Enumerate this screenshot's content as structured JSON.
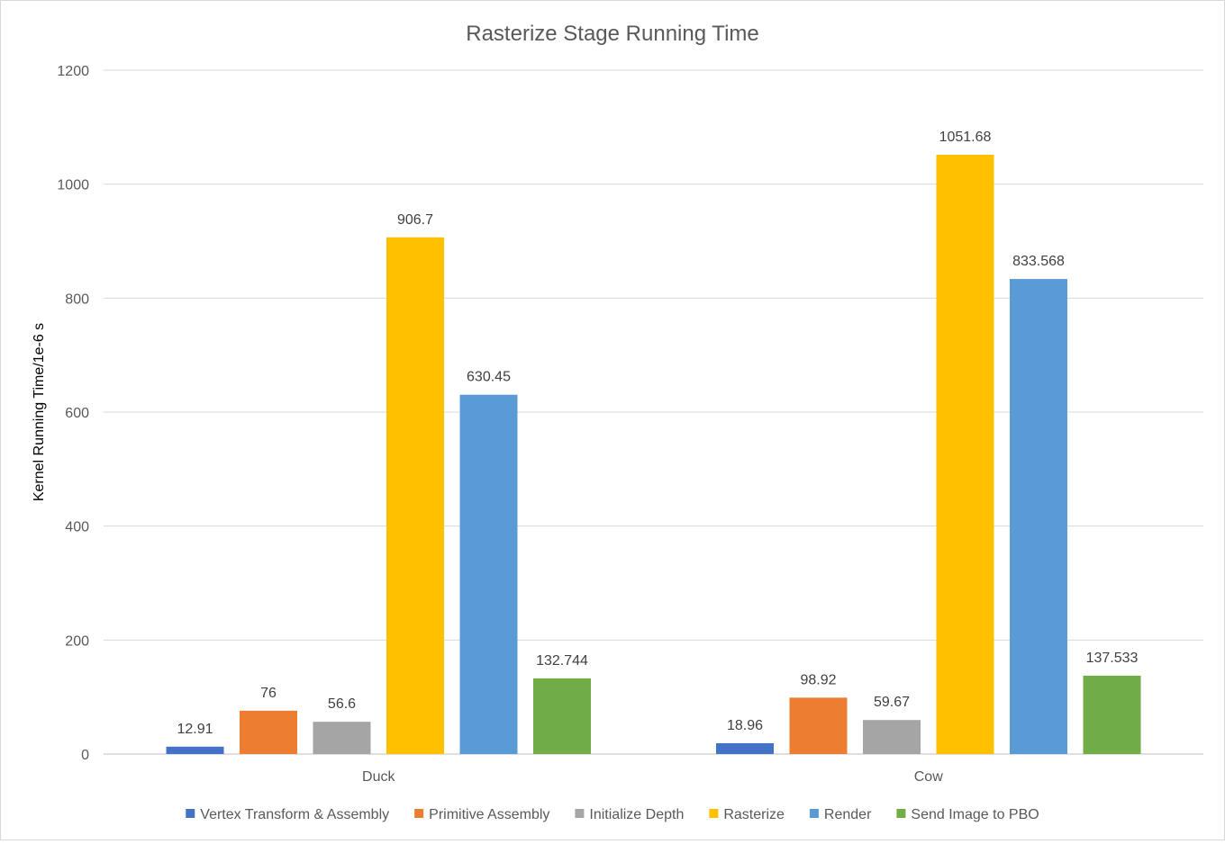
{
  "chart_data": {
    "type": "bar",
    "title": "Rasterize Stage Running Time",
    "xlabel": "",
    "ylabel": "Kernel Running Time/1e-6 s",
    "categories": [
      "Duck",
      "Cow"
    ],
    "ylim": [
      0,
      1200
    ],
    "yticks": [
      0,
      200,
      400,
      600,
      800,
      1000,
      1200
    ],
    "grid": true,
    "legend_position": "bottom",
    "series": [
      {
        "name": "Vertex Transform & Assembly",
        "color": "#4472C4",
        "values": [
          12.91,
          18.96
        ],
        "labels": [
          "12.91",
          "18.96"
        ]
      },
      {
        "name": "Primitive Assembly",
        "color": "#ED7D31",
        "values": [
          76,
          98.92
        ],
        "labels": [
          "76",
          "98.92"
        ]
      },
      {
        "name": "Initialize Depth",
        "color": "#A5A5A5",
        "values": [
          56.6,
          59.67
        ],
        "labels": [
          "56.6",
          "59.67"
        ]
      },
      {
        "name": "Rasterize",
        "color": "#FFC000",
        "values": [
          906.7,
          1051.68
        ],
        "labels": [
          "906.7",
          "1051.68"
        ]
      },
      {
        "name": "Render",
        "color": "#5B9BD5",
        "values": [
          630.45,
          833.568
        ],
        "labels": [
          "630.45",
          "833.568"
        ]
      },
      {
        "name": "Send Image to PBO",
        "color": "#70AD47",
        "values": [
          132.744,
          137.533
        ],
        "labels": [
          "132.744",
          "137.533"
        ]
      }
    ]
  }
}
